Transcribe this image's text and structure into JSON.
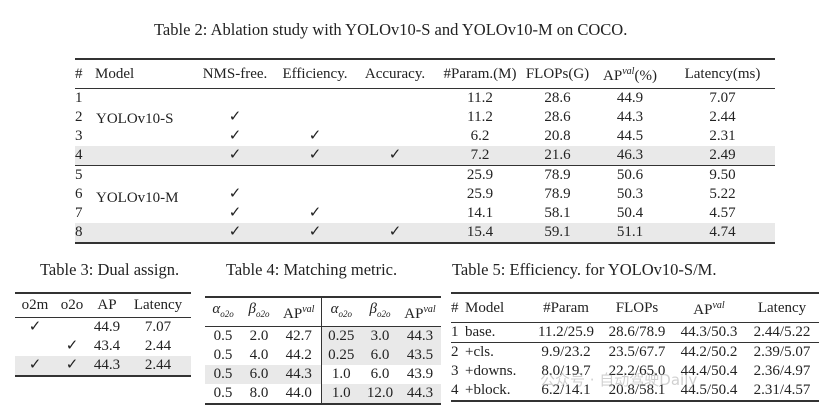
{
  "table2": {
    "caption": "Table 2: Ablation study with YOLOv10-S and YOLOv10-M on COCO.",
    "headers": [
      "#",
      "Model",
      "NMS-free.",
      "Efficiency.",
      "Accuracy.",
      "#Param.(M)",
      "FLOPs(G)",
      "AP",
      "val",
      "(%)",
      "Latency(ms)"
    ],
    "groups": [
      {
        "model": "YOLOv10-S"
      },
      {
        "model": "YOLOv10-M"
      }
    ],
    "rows": [
      [
        "1",
        "",
        "",
        "",
        "",
        "11.2",
        "28.6",
        "44.9",
        "7.07"
      ],
      [
        "2",
        "",
        "✓",
        "",
        "",
        "11.2",
        "28.6",
        "44.3",
        "2.44"
      ],
      [
        "3",
        "",
        "✓",
        "✓",
        "",
        "6.2",
        "20.8",
        "44.5",
        "2.31"
      ],
      [
        "4",
        "",
        "✓",
        "✓",
        "✓",
        "7.2",
        "21.6",
        "46.3",
        "2.49"
      ],
      [
        "5",
        "",
        "",
        "",
        "",
        "25.9",
        "78.9",
        "50.6",
        "9.50"
      ],
      [
        "6",
        "",
        "✓",
        "",
        "",
        "25.9",
        "78.9",
        "50.3",
        "5.22"
      ],
      [
        "7",
        "",
        "✓",
        "✓",
        "",
        "14.1",
        "58.1",
        "50.4",
        "4.57"
      ],
      [
        "8",
        "",
        "✓",
        "✓",
        "✓",
        "15.4",
        "59.1",
        "51.1",
        "4.74"
      ]
    ]
  },
  "table3": {
    "caption": "Table 3: Dual assign.",
    "headers": [
      "o2m",
      "o2o",
      "AP",
      "Latency"
    ],
    "rows": [
      [
        "✓",
        "",
        "44.9",
        "7.07"
      ],
      [
        "",
        "✓",
        "43.4",
        "2.44"
      ],
      [
        "✓",
        "✓",
        "44.3",
        "2.44"
      ]
    ]
  },
  "table4": {
    "caption": "Table 4: Matching metric.",
    "headers": [
      "α",
      "o2o",
      "β",
      "o2o",
      "AP",
      "val"
    ],
    "rows": [
      [
        "0.5",
        "2.0",
        "42.7",
        "0.25",
        "3.0",
        "44.3"
      ],
      [
        "0.5",
        "4.0",
        "44.2",
        "0.25",
        "6.0",
        "43.5"
      ],
      [
        "0.5",
        "6.0",
        "44.3",
        "1.0",
        "6.0",
        "43.9"
      ],
      [
        "0.5",
        "8.0",
        "44.0",
        "1.0",
        "12.0",
        "44.3"
      ]
    ]
  },
  "table5": {
    "caption": "Table 5: Efficiency. for YOLOv10-S/M.",
    "headers": [
      "#",
      "Model",
      "#Param",
      "FLOPs",
      "AP",
      "val",
      "Latency"
    ],
    "rows": [
      [
        "1",
        "base.",
        "11.2/25.9",
        "28.6/78.9",
        "44.3/50.3",
        "2.44/5.22"
      ],
      [
        "2",
        "+cls.",
        "9.9/23.2",
        "23.5/67.7",
        "44.2/50.2",
        "2.39/5.07"
      ],
      [
        "3",
        "+downs.",
        "8.0/19.7",
        "22.2/65.0",
        "44.4/50.4",
        "2.36/4.97"
      ],
      [
        "4",
        "+block.",
        "6.2/14.1",
        "20.8/58.1",
        "44.5/50.4",
        "2.31/4.57"
      ]
    ]
  },
  "watermark": "公众号 · 自动驾驶Daily"
}
